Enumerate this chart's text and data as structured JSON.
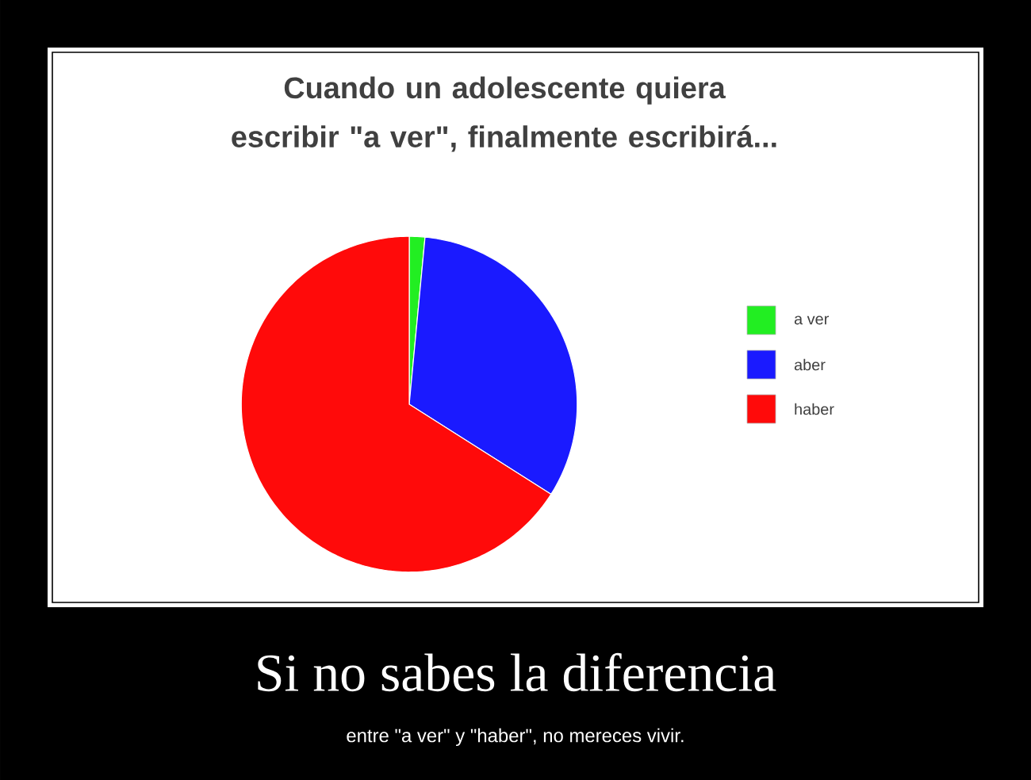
{
  "chart_data": {
    "type": "pie",
    "title": "Cuando un adolescente quiera escribir \"a ver\", finalmente escribirá...",
    "categories": [
      "a ver",
      "aber",
      "haber"
    ],
    "values": [
      1.5,
      32.5,
      66
    ],
    "colors": [
      "#22ee22",
      "#1a1aff",
      "#ff0a0a"
    ],
    "legend": "right",
    "annotations": [
      "Si no sabes la diferencia",
      "entre \"a ver\" y \"haber\", no mereces vivir."
    ]
  }
}
